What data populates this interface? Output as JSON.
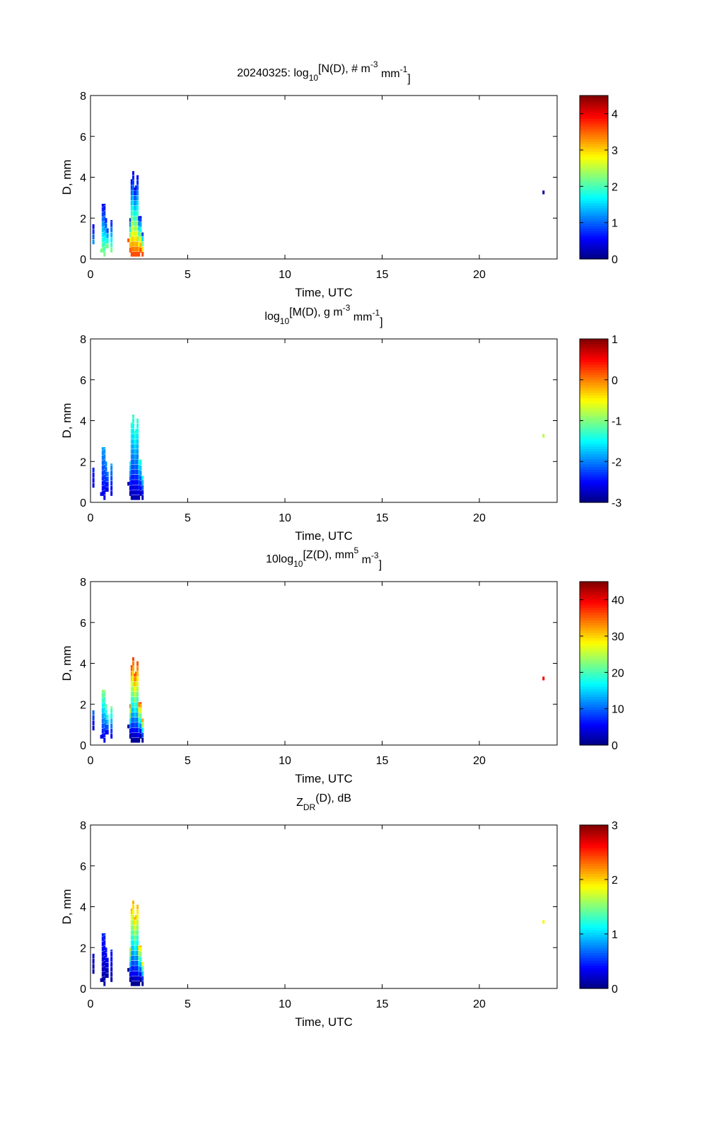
{
  "chart_data": [
    {
      "type": "heatmap",
      "title_prefix": "20240325: ",
      "title_main": "log",
      "title_sub": "10",
      "title_rest": "[N(D), # m",
      "title_sup1": "-3",
      "title_mid": " mm",
      "title_sup2": "-1",
      "title_end": "]",
      "xlabel": "Time, UTC",
      "ylabel": "D, mm",
      "xlim": [
        0,
        24
      ],
      "ylim": [
        0,
        8
      ],
      "xticks": [
        0,
        5,
        10,
        15,
        20
      ],
      "yticks": [
        0,
        2,
        4,
        6,
        8
      ],
      "clim": [
        0,
        4.5
      ],
      "cticks": [
        0,
        1,
        2,
        3,
        4
      ],
      "values": {
        "c0": [
          1.2,
          0.3
        ],
        "c1": [
          2.2,
          0.4
        ],
        "c2": [
          3.6,
          0.3
        ],
        "c3": [
          0.2,
          0.2
        ]
      }
    },
    {
      "type": "heatmap",
      "title_prefix": "",
      "title_main": "log",
      "title_sub": "10",
      "title_rest": "[M(D), g m",
      "title_sup1": "-3",
      "title_mid": " mm",
      "title_sup2": "-1",
      "title_end": "]",
      "xlabel": "Time, UTC",
      "ylabel": "D, mm",
      "xlim": [
        0,
        24
      ],
      "ylim": [
        0,
        8
      ],
      "xticks": [
        0,
        5,
        10,
        15,
        20
      ],
      "yticks": [
        0,
        2,
        4,
        6,
        8
      ],
      "clim": [
        -3,
        1
      ],
      "cticks": [
        -3,
        -2,
        -1,
        0,
        1
      ],
      "values": {
        "c0": [
          -2.6,
          -2.3
        ],
        "c1": [
          -2.6,
          -1.8
        ],
        "c2": [
          -2.8,
          -1.2
        ],
        "c3": [
          -0.8,
          -0.8
        ]
      }
    },
    {
      "type": "heatmap",
      "title_prefix": "",
      "title_main": "10log",
      "title_sub": "10",
      "title_rest": "[Z(D),  mm",
      "title_sup1": "5",
      "title_mid": " m",
      "title_sup2": "-3",
      "title_end": "]",
      "xlabel": "Time, UTC",
      "ylabel": "D, mm",
      "xlim": [
        0,
        24
      ],
      "ylim": [
        0,
        45
      ],
      "xticks": [
        0,
        5,
        10,
        15,
        20
      ],
      "yticks": [
        0,
        2,
        4,
        6,
        8
      ],
      "clim": [
        0,
        45
      ],
      "cticks": [
        0,
        10,
        20,
        30,
        40
      ],
      "values": {
        "c0": [
          4,
          12
        ],
        "c1": [
          5,
          24
        ],
        "c2": [
          1,
          38
        ],
        "c3": [
          40,
          40
        ]
      }
    },
    {
      "type": "heatmap",
      "title_prefix": "",
      "title_main": "Z",
      "title_sub": "DR",
      "title_rest": "(D), dB",
      "title_sup1": "",
      "title_mid": "",
      "title_sup2": "",
      "title_end": "",
      "xlabel": "Time, UTC",
      "ylabel": "D, mm",
      "xlim": [
        0,
        24
      ],
      "ylim": [
        0,
        8
      ],
      "xticks": [
        0,
        5,
        10,
        15,
        20
      ],
      "yticks": [
        0,
        2,
        4,
        6,
        8
      ],
      "clim": [
        0,
        3
      ],
      "cticks": [
        0,
        1,
        2,
        3
      ],
      "values": {
        "c0": [
          0.1,
          0.3
        ],
        "c1": [
          0.1,
          0.5
        ],
        "c2": [
          0.05,
          2.2
        ],
        "c3": [
          1.9,
          1.9
        ]
      }
    }
  ],
  "columns": [
    {
      "cluster": "c0",
      "t": 0.15,
      "d": [
        0.7,
        1.7
      ]
    },
    {
      "cluster": "c1",
      "t": 0.55,
      "d": [
        0.3,
        0.5
      ]
    },
    {
      "cluster": "c1",
      "t": 0.63,
      "d": [
        0.3,
        2.7
      ]
    },
    {
      "cluster": "c1",
      "t": 0.72,
      "d": [
        0.1,
        2.7
      ]
    },
    {
      "cluster": "c1",
      "t": 0.8,
      "d": [
        0.5,
        2.0
      ]
    },
    {
      "cluster": "c1",
      "t": 0.88,
      "d": [
        0.5,
        1.5
      ]
    },
    {
      "cluster": "c1",
      "t": 1.08,
      "d": [
        0.3,
        1.9
      ]
    },
    {
      "cluster": "c2",
      "t": 1.95,
      "d": [
        0.8,
        1.0
      ]
    },
    {
      "cluster": "c2",
      "t": 2.05,
      "d": [
        0.3,
        2.0
      ]
    },
    {
      "cluster": "c2",
      "t": 2.12,
      "d": [
        0.1,
        3.9
      ]
    },
    {
      "cluster": "c2",
      "t": 2.2,
      "d": [
        0.1,
        4.3
      ]
    },
    {
      "cluster": "c2",
      "t": 2.28,
      "d": [
        0.1,
        3.5
      ]
    },
    {
      "cluster": "c2",
      "t": 2.35,
      "d": [
        0.1,
        3.6
      ]
    },
    {
      "cluster": "c2",
      "t": 2.42,
      "d": [
        0.1,
        4.1
      ]
    },
    {
      "cluster": "c2",
      "t": 2.5,
      "d": [
        0.1,
        2.1
      ]
    },
    {
      "cluster": "c2",
      "t": 2.58,
      "d": [
        0.3,
        2.1
      ]
    },
    {
      "cluster": "c2",
      "t": 2.68,
      "d": [
        0.1,
        1.3
      ]
    },
    {
      "cluster": "c3",
      "t": 23.3,
      "d": [
        3.15,
        3.35
      ]
    }
  ]
}
